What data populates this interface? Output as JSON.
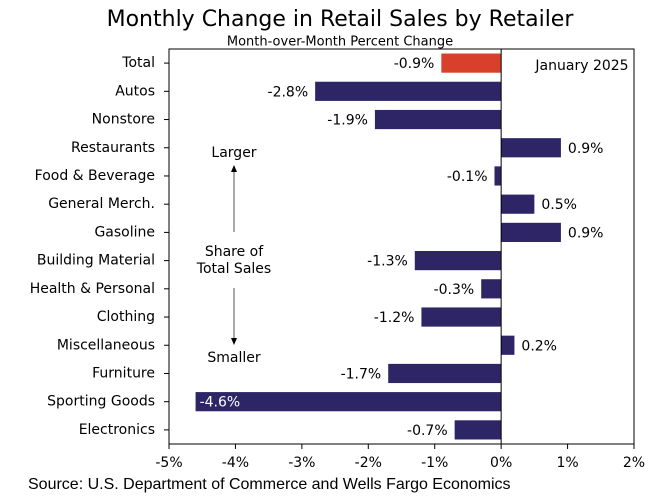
{
  "chart_data": {
    "type": "bar",
    "orientation": "horizontal",
    "title": "Monthly Change in Retail Sales by Retailer",
    "subtitle": "Month-over-Month Percent Change",
    "categories": [
      "Total",
      "Autos",
      "Nonstore",
      "Restaurants",
      "Food & Beverage",
      "General Merch.",
      "Gasoline",
      "Building Material",
      "Health & Personal",
      "Clothing",
      "Miscellaneous",
      "Furniture",
      "Sporting Goods",
      "Electronics"
    ],
    "values": [
      -0.9,
      -2.8,
      -1.9,
      0.9,
      -0.1,
      0.5,
      0.9,
      -1.3,
      -0.3,
      -1.2,
      0.2,
      -1.7,
      -4.6,
      -0.7
    ],
    "value_labels": [
      "-0.9%",
      "-2.8%",
      "-1.9%",
      "0.9%",
      "-0.1%",
      "0.5%",
      "0.9%",
      "-1.3%",
      "-0.3%",
      "-1.2%",
      "0.2%",
      "-1.7%",
      "-4.6%",
      "-0.7%"
    ],
    "colors": [
      "#d9402b",
      "#2e2566",
      "#2e2566",
      "#2e2566",
      "#2e2566",
      "#2e2566",
      "#2e2566",
      "#2e2566",
      "#2e2566",
      "#2e2566",
      "#2e2566",
      "#2e2566",
      "#2e2566",
      "#2e2566"
    ],
    "xlim": [
      -5,
      2
    ],
    "xticks": [
      {
        "value": -5,
        "label": "-5%"
      },
      {
        "value": -4,
        "label": "-4%"
      },
      {
        "value": -3,
        "label": "-3%"
      },
      {
        "value": -2,
        "label": "-2%"
      },
      {
        "value": -1,
        "label": "-1%"
      },
      {
        "value": 0,
        "label": "0%"
      },
      {
        "value": 1,
        "label": "1%"
      },
      {
        "value": 2,
        "label": "2%"
      }
    ],
    "annotations": {
      "date": "January 2025",
      "top": "Larger",
      "middle": [
        "Share of",
        "Total Sales"
      ],
      "bottom": "Smaller"
    },
    "source": "Source: U.S. Department of Commerce and Wells Fargo Economics"
  }
}
